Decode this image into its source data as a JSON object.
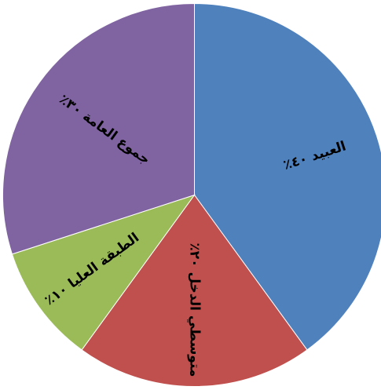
{
  "chart_data": {
    "type": "pie",
    "title": "",
    "start_angle_deg": 0,
    "direction": "clockwise",
    "slices": [
      {
        "label": "العبيد ٤٠٪",
        "value": 40,
        "color": "#4f81bd"
      },
      {
        "label": "متوسطي الدخل ٢٠٪",
        "value": 20,
        "color": "#c0504d"
      },
      {
        "label": "الطبقة العليا ١٠٪",
        "value": 10,
        "color": "#9bbb59"
      },
      {
        "label": "جموع العامة ٣٠٪",
        "value": 30,
        "color": "#8064a2"
      }
    ],
    "legend": "none"
  }
}
